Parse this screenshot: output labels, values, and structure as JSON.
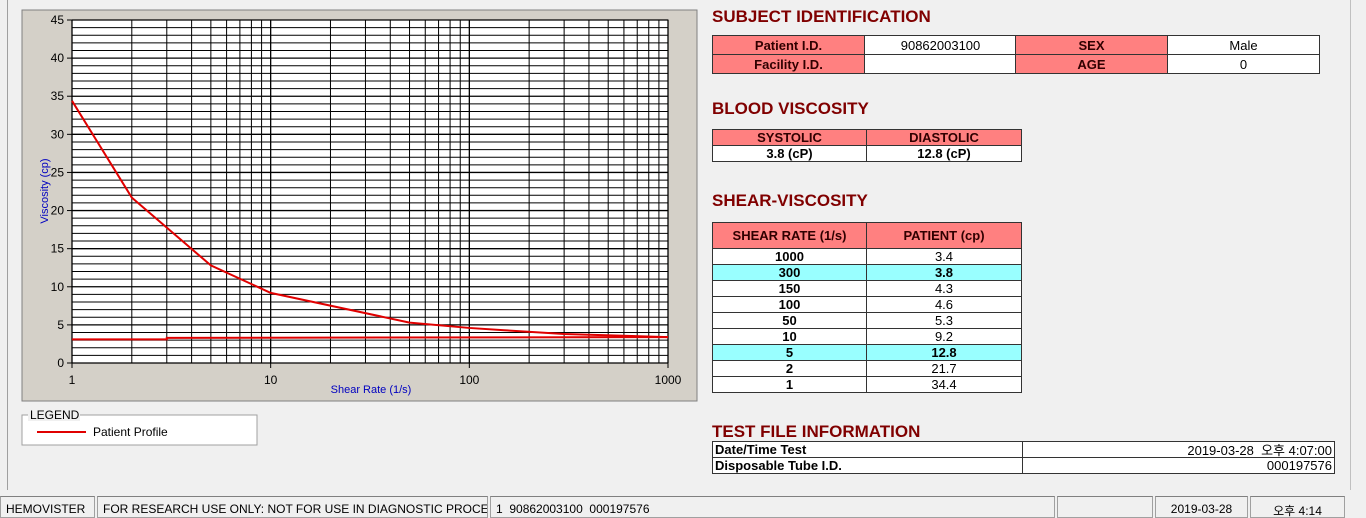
{
  "chart_data": {
    "type": "line",
    "x_label": "Shear Rate (1/s)",
    "y_label": "Viscosity (cp)",
    "xlim": [
      1,
      1000
    ],
    "xticks": [
      1,
      10,
      100,
      1000
    ],
    "log_x": true,
    "ylim": [
      0,
      45
    ],
    "yticks": [
      0,
      5,
      10,
      15,
      20,
      25,
      30,
      35,
      40,
      45
    ],
    "grid": true,
    "minor_grid": true,
    "legend_title": "LEGEND",
    "series": [
      {
        "name": "Patient Profile",
        "color": "#e00000",
        "x": [
          1,
          2,
          5,
          10,
          50,
          100,
          150,
          300,
          1000
        ],
        "values": [
          34.4,
          21.7,
          12.8,
          9.2,
          5.3,
          4.6,
          4.3,
          3.8,
          3.4
        ]
      },
      {
        "color": "#e00000",
        "x": [
          1,
          3,
          3,
          1000
        ],
        "values": [
          3.1,
          3.1,
          3.3,
          3.4
        ]
      }
    ]
  },
  "subject": {
    "title": "SUBJECT IDENTIFICATION",
    "rows": [
      [
        "Patient I.D.",
        "90862003100",
        "SEX",
        "Male"
      ],
      [
        "Facility I.D.",
        null,
        "AGE",
        "0"
      ]
    ]
  },
  "blood_viscosity": {
    "title": "BLOOD VISCOSITY",
    "headers": [
      "SYSTOLIC",
      "DIASTOLIC"
    ],
    "values": [
      "3.8 (cP)",
      "12.8 (cP)"
    ]
  },
  "shear_viscosity": {
    "title": "SHEAR-VISCOSITY",
    "headers": [
      "SHEAR RATE (1/s)",
      "PATIENT (cp)"
    ],
    "rows": [
      [
        "1000",
        "3.4"
      ],
      [
        "300",
        "3.8"
      ],
      [
        "150",
        "4.3"
      ],
      [
        "100",
        "4.6"
      ],
      [
        "50",
        "5.3"
      ],
      [
        "10",
        "9.2"
      ],
      [
        "5",
        "12.8"
      ],
      [
        "2",
        "21.7"
      ],
      [
        "1",
        "34.4"
      ]
    ],
    "highlight_rows": [
      1,
      6
    ]
  },
  "test_file": {
    "title": "TEST FILE INFORMATION",
    "rows": [
      [
        "Date/Time Test",
        "2019-03-28  오후 4:07:00"
      ],
      [
        "Disposable Tube I.D.",
        "000197576"
      ]
    ]
  },
  "status_bar": [
    "HEMOVISTER",
    "FOR RESEARCH USE ONLY: NOT FOR USE IN DIAGNOSTIC PROCEDURES",
    "1  90862003100  000197576",
    null,
    "2019-03-28",
    "오후 4:14"
  ]
}
